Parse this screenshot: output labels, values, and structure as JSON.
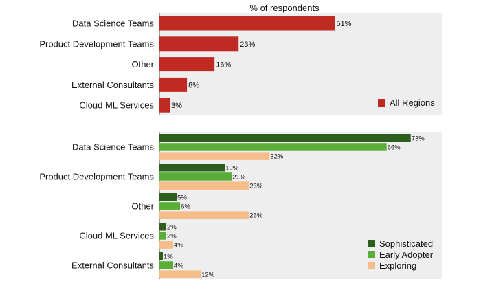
{
  "chart_data": [
    {
      "type": "bar",
      "orientation": "horizontal",
      "title": "% of respondents",
      "categories": [
        "Data Science Teams",
        "Product Development Teams",
        "Other",
        "External Consultants",
        "Cloud ML Services"
      ],
      "series": [
        {
          "name": "All Regions",
          "color": "#bf2b22",
          "values": [
            51,
            23,
            16,
            8,
            3
          ]
        }
      ],
      "xlim": [
        0,
        80
      ],
      "legend": "bottom-right"
    },
    {
      "type": "bar",
      "orientation": "horizontal",
      "categories": [
        "Data Science Teams",
        "Product Development Teams",
        "Other",
        "Cloud ML Services",
        "External Consultants"
      ],
      "series": [
        {
          "name": "Sophisticated",
          "color": "#2d5e1e",
          "values": [
            73,
            19,
            5,
            2,
            1
          ]
        },
        {
          "name": "Early Adopter",
          "color": "#5aae38",
          "values": [
            66,
            21,
            6,
            2,
            4
          ]
        },
        {
          "name": "Exploring",
          "color": "#f5bd8a",
          "values": [
            32,
            26,
            26,
            4,
            12
          ]
        }
      ],
      "xlim": [
        0,
        80
      ],
      "legend": "bottom-right"
    }
  ]
}
